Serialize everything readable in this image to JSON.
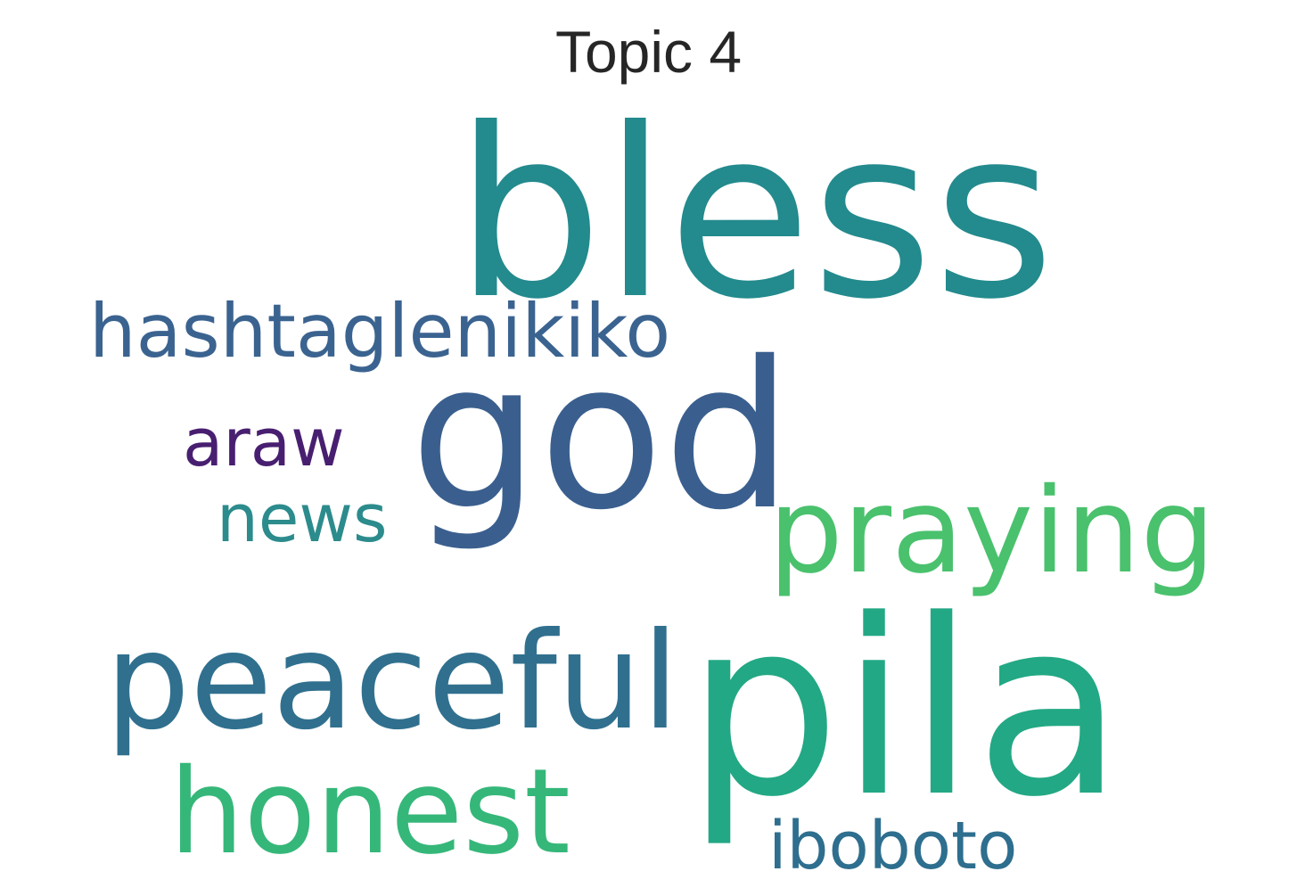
{
  "title": "Topic 4",
  "words": [
    {
      "key": "bless",
      "text": "bless",
      "color": "#238a8d"
    },
    {
      "key": "god",
      "text": "god",
      "color": "#3a5f8e"
    },
    {
      "key": "pila",
      "text": "pila",
      "color": "#22a884"
    },
    {
      "key": "peaceful",
      "text": "peaceful",
      "color": "#30708e"
    },
    {
      "key": "praying",
      "text": "praying",
      "color": "#4ac16d"
    },
    {
      "key": "honest",
      "text": "honest",
      "color": "#35b779"
    },
    {
      "key": "hashtaglenikiko",
      "text": "hashtaglenikiko",
      "color": "#3b6390"
    },
    {
      "key": "araw",
      "text": "araw",
      "color": "#481f70"
    },
    {
      "key": "news",
      "text": "news",
      "color": "#2c8b8c"
    },
    {
      "key": "iboboto",
      "text": "iboboto",
      "color": "#2e6e8e"
    }
  ]
}
